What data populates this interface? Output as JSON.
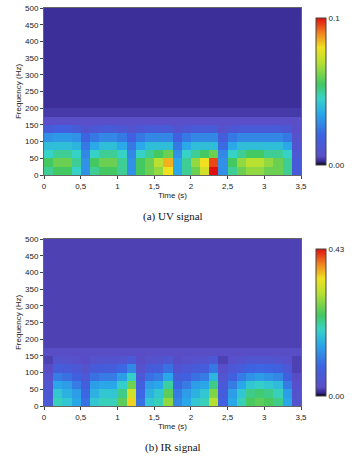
{
  "chart_data": [
    {
      "type": "heatmap",
      "title": "(a) UV signal",
      "x_label": "Time (s)",
      "y_label": "Frequency (Hz)",
      "xlim": [
        0,
        3.5
      ],
      "xticks": [
        0,
        {
          "value": 0.5,
          "label": "0,5"
        },
        1,
        {
          "value": 1.5,
          "label": "1,5"
        },
        2,
        {
          "value": 2.5,
          "label": "2,5"
        },
        3,
        {
          "value": 3.5,
          "label": "3,5"
        }
      ],
      "ylim": [
        0,
        500
      ],
      "yticks": [
        0,
        50,
        100,
        150,
        200,
        250,
        300,
        350,
        400,
        450,
        500
      ],
      "x_edges": [
        0,
        0.125,
        0.25,
        0.375,
        0.5,
        0.625,
        0.75,
        0.875,
        1,
        1.125,
        1.25,
        1.375,
        1.5,
        1.625,
        1.75,
        1.875,
        2,
        2.125,
        2.25,
        2.375,
        2.5,
        2.625,
        2.75,
        2.875,
        3,
        3.125,
        3.25,
        3.375,
        3.5
      ],
      "y_edges": [
        0,
        25,
        50,
        75,
        100,
        125,
        150,
        175,
        200,
        500
      ],
      "cells": [
        [
          0.05,
          0.055,
          0.055,
          0.045,
          0.03,
          0.05,
          0.055,
          0.055,
          0.05,
          0.03,
          0.055,
          0.06,
          0.065,
          0.08,
          0.035,
          0.05,
          0.06,
          0.075,
          0.1,
          0.03,
          0.05,
          0.06,
          0.065,
          0.065,
          0.06,
          0.06,
          0.05,
          0.015
        ],
        [
          0.055,
          0.06,
          0.06,
          0.05,
          0.03,
          0.055,
          0.06,
          0.06,
          0.05,
          0.03,
          0.055,
          0.06,
          0.07,
          0.085,
          0.035,
          0.05,
          0.065,
          0.08,
          0.095,
          0.03,
          0.055,
          0.065,
          0.07,
          0.07,
          0.065,
          0.06,
          0.05,
          0.015
        ],
        [
          0.045,
          0.05,
          0.05,
          0.045,
          0.028,
          0.045,
          0.05,
          0.05,
          0.045,
          0.028,
          0.045,
          0.05,
          0.055,
          0.06,
          0.03,
          0.045,
          0.05,
          0.055,
          0.06,
          0.028,
          0.045,
          0.05,
          0.055,
          0.055,
          0.05,
          0.05,
          0.045,
          0.012
        ],
        [
          0.04,
          0.04,
          0.04,
          0.038,
          0.025,
          0.035,
          0.04,
          0.04,
          0.035,
          0.025,
          0.035,
          0.04,
          0.04,
          0.04,
          0.025,
          0.035,
          0.04,
          0.04,
          0.04,
          0.022,
          0.035,
          0.04,
          0.04,
          0.04,
          0.04,
          0.04,
          0.035,
          0.01
        ],
        [
          0.03,
          0.032,
          0.032,
          0.03,
          0.02,
          0.025,
          0.028,
          0.028,
          0.025,
          0.018,
          0.025,
          0.028,
          0.028,
          0.028,
          0.018,
          0.025,
          0.028,
          0.028,
          0.028,
          0.016,
          0.025,
          0.028,
          0.028,
          0.028,
          0.028,
          0.028,
          0.025,
          0.008
        ],
        [
          0.015,
          0.018,
          0.018,
          0.015,
          0.01,
          0.012,
          0.014,
          0.014,
          0.012,
          0.009,
          0.012,
          0.014,
          0.014,
          0.014,
          0.009,
          0.012,
          0.014,
          0.014,
          0.014,
          0.008,
          0.012,
          0.014,
          0.014,
          0.014,
          0.014,
          0.014,
          0.012,
          0.006
        ],
        [
          0.006,
          0.006,
          0.006,
          0.006,
          0.006,
          0.006,
          0.006,
          0.006,
          0.006,
          0.006,
          0.006,
          0.006,
          0.006,
          0.006,
          0.006,
          0.006,
          0.006,
          0.006,
          0.006,
          0.006,
          0.006,
          0.006,
          0.006,
          0.006,
          0.006,
          0.006,
          0.006,
          0.006
        ],
        [
          0.004,
          0.004,
          0.004,
          0.004,
          0.004,
          0.004,
          0.004,
          0.004,
          0.004,
          0.004,
          0.004,
          0.004,
          0.004,
          0.004,
          0.004,
          0.004,
          0.004,
          0.004,
          0.004,
          0.004,
          0.004,
          0.004,
          0.004,
          0.004,
          0.004,
          0.004,
          0.004,
          0.004
        ],
        [
          0.003,
          0.003,
          0.003,
          0.003,
          0.003,
          0.003,
          0.003,
          0.003,
          0.003,
          0.003,
          0.003,
          0.003,
          0.003,
          0.003,
          0.003,
          0.003,
          0.003,
          0.003,
          0.003,
          0.003,
          0.003,
          0.003,
          0.003,
          0.003,
          0.003,
          0.003,
          0.003,
          0.003
        ]
      ],
      "colorbar_range": [
        0,
        0.1
      ],
      "colorbar_ticks": [
        {
          "value": 0,
          "label": "0.00"
        },
        0.1
      ]
    },
    {
      "type": "heatmap",
      "title": "(b) IR signal",
      "x_label": "Time (s)",
      "y_label": "Frequency (Hz)",
      "xlim": [
        0,
        3.5
      ],
      "xticks": [
        0,
        {
          "value": 0.5,
          "label": "0,5"
        },
        1,
        {
          "value": 1.5,
          "label": "1,5"
        },
        2,
        {
          "value": 2.5,
          "label": "2,5"
        },
        3,
        {
          "value": 3.5,
          "label": "3,5"
        }
      ],
      "ylim": [
        0,
        500
      ],
      "yticks": [
        0,
        50,
        100,
        150,
        200,
        250,
        300,
        350,
        400,
        450,
        500
      ],
      "x_edges": [
        0,
        0.125,
        0.25,
        0.375,
        0.5,
        0.625,
        0.75,
        0.875,
        1,
        1.125,
        1.25,
        1.375,
        1.5,
        1.625,
        1.75,
        1.875,
        2,
        2.125,
        2.25,
        2.375,
        2.5,
        2.625,
        2.75,
        2.875,
        3,
        3.125,
        3.25,
        3.375,
        3.5
      ],
      "y_edges": [
        0,
        25,
        50,
        75,
        100,
        125,
        150,
        175,
        200,
        500
      ],
      "cells": [
        [
          0.06,
          0.2,
          0.18,
          0.15,
          0.1,
          0.18,
          0.2,
          0.2,
          0.25,
          0.35,
          0.1,
          0.18,
          0.2,
          0.28,
          0.12,
          0.15,
          0.18,
          0.2,
          0.3,
          0.08,
          0.15,
          0.2,
          0.24,
          0.25,
          0.24,
          0.22,
          0.15,
          0.04
        ],
        [
          0.05,
          0.18,
          0.16,
          0.14,
          0.09,
          0.16,
          0.18,
          0.18,
          0.22,
          0.32,
          0.09,
          0.16,
          0.18,
          0.25,
          0.11,
          0.14,
          0.16,
          0.18,
          0.27,
          0.07,
          0.14,
          0.18,
          0.22,
          0.23,
          0.22,
          0.2,
          0.14,
          0.04
        ],
        [
          0.045,
          0.15,
          0.14,
          0.11,
          0.075,
          0.14,
          0.15,
          0.15,
          0.19,
          0.26,
          0.075,
          0.14,
          0.15,
          0.21,
          0.09,
          0.11,
          0.14,
          0.15,
          0.22,
          0.06,
          0.11,
          0.15,
          0.18,
          0.19,
          0.18,
          0.17,
          0.11,
          0.03
        ],
        [
          0.035,
          0.11,
          0.1,
          0.08,
          0.055,
          0.1,
          0.11,
          0.11,
          0.14,
          0.19,
          0.055,
          0.1,
          0.11,
          0.15,
          0.066,
          0.08,
          0.1,
          0.11,
          0.165,
          0.045,
          0.08,
          0.11,
          0.13,
          0.14,
          0.13,
          0.12,
          0.08,
          0.025
        ],
        [
          0.025,
          0.07,
          0.065,
          0.055,
          0.035,
          0.065,
          0.07,
          0.07,
          0.09,
          0.12,
          0.035,
          0.065,
          0.07,
          0.1,
          0.042,
          0.055,
          0.065,
          0.07,
          0.105,
          0.03,
          0.055,
          0.07,
          0.085,
          0.09,
          0.085,
          0.08,
          0.055,
          0.02
        ],
        [
          0.02,
          0.04,
          0.035,
          0.03,
          0.025,
          0.035,
          0.04,
          0.04,
          0.045,
          0.06,
          0.025,
          0.035,
          0.04,
          0.05,
          0.025,
          0.03,
          0.035,
          0.04,
          0.055,
          0.02,
          0.03,
          0.04,
          0.045,
          0.045,
          0.045,
          0.04,
          0.03,
          0.02
        ],
        [
          0.025,
          0.025,
          0.025,
          0.025,
          0.025,
          0.025,
          0.025,
          0.025,
          0.025,
          0.025,
          0.025,
          0.025,
          0.025,
          0.025,
          0.025,
          0.025,
          0.025,
          0.025,
          0.025,
          0.025,
          0.025,
          0.025,
          0.025,
          0.025,
          0.025,
          0.025,
          0.025,
          0.025
        ],
        [
          0.02,
          0.02,
          0.02,
          0.02,
          0.02,
          0.02,
          0.02,
          0.02,
          0.02,
          0.02,
          0.02,
          0.02,
          0.02,
          0.02,
          0.02,
          0.02,
          0.02,
          0.02,
          0.02,
          0.02,
          0.02,
          0.02,
          0.02,
          0.02,
          0.02,
          0.02,
          0.02,
          0.02
        ],
        [
          0.02,
          0.02,
          0.02,
          0.02,
          0.02,
          0.02,
          0.02,
          0.02,
          0.02,
          0.02,
          0.02,
          0.02,
          0.02,
          0.02,
          0.02,
          0.02,
          0.02,
          0.02,
          0.02,
          0.02,
          0.02,
          0.02,
          0.02,
          0.02,
          0.02,
          0.02,
          0.02,
          0.02
        ]
      ],
      "colorbar_range": [
        0,
        0.43
      ],
      "colorbar_ticks": [
        {
          "value": 0,
          "label": "0.00"
        },
        0.43
      ]
    }
  ]
}
